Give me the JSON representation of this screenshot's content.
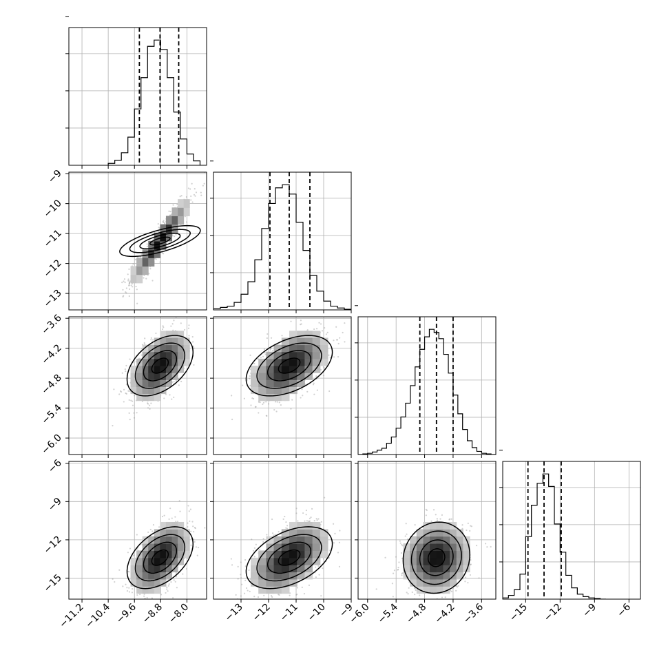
{
  "chart_data": {
    "type": "corner",
    "title": "",
    "grid": true,
    "panels_per_side": 4,
    "parameters": [
      {
        "xlim": [
          -11.6,
          -7.4
        ],
        "xticks": [
          -11.2,
          -10.4,
          -9.6,
          -8.8,
          -8.0
        ],
        "xtick_labels": [
          "−11.2",
          "−10.4",
          "−9.6",
          "−8.8",
          "−8.0"
        ],
        "quantiles": [
          -9.45,
          -8.82,
          -8.25
        ],
        "hist_edges": [
          -10.4,
          -10.2,
          -10.0,
          -9.8,
          -9.6,
          -9.4,
          -9.2,
          -9.0,
          -8.8,
          -8.6,
          -8.4,
          -8.2,
          -8.0,
          -7.8,
          -7.6
        ],
        "hist_counts": [
          3,
          8,
          20,
          45,
          90,
          140,
          190,
          200,
          185,
          140,
          85,
          42,
          18,
          7
        ]
      },
      {
        "xlim": [
          -14.0,
          -9.0
        ],
        "xticks": [
          -13,
          -12,
          -11,
          -10,
          -9
        ],
        "xtick_labels": [
          "−13",
          "−12",
          "−11",
          "−10",
          "−9"
        ],
        "yticks": [
          -9,
          -10,
          -11,
          -12,
          -13
        ],
        "ytick_labels": [
          "−9",
          "−10",
          "−11",
          "−12",
          "−13"
        ],
        "quantiles": [
          -11.95,
          -11.25,
          -10.5
        ],
        "hist_edges": [
          -14.0,
          -13.75,
          -13.5,
          -13.25,
          -13.0,
          -12.75,
          -12.5,
          -12.25,
          -12.0,
          -11.75,
          -11.5,
          -11.25,
          -11.0,
          -10.75,
          -10.5,
          -10.25,
          -10.0,
          -9.75,
          -9.5,
          -9.25,
          -9.0
        ],
        "hist_counts": [
          2,
          4,
          6,
          12,
          25,
          45,
          80,
          130,
          170,
          195,
          200,
          185,
          140,
          95,
          55,
          30,
          14,
          6,
          3,
          1
        ]
      },
      {
        "xlim": [
          -6.2,
          -3.3
        ],
        "xticks": [
          -6.0,
          -5.4,
          -4.8,
          -4.2,
          -3.6
        ],
        "xtick_labels": [
          "−6.0",
          "−5.4",
          "−4.8",
          "−4.2",
          "−3.6"
        ],
        "yticks": [
          -3.6,
          -4.2,
          -4.8,
          -5.4,
          -6.0
        ],
        "ytick_labels": [
          "−3.6",
          "−4.2",
          "−4.8",
          "−5.4",
          "−6.0"
        ],
        "quantiles": [
          -4.9,
          -4.55,
          -4.2
        ],
        "hist_edges": [
          -6.2,
          -6.1,
          -6.0,
          -5.9,
          -5.8,
          -5.7,
          -5.6,
          -5.5,
          -5.4,
          -5.3,
          -5.2,
          -5.1,
          -5.0,
          -4.9,
          -4.8,
          -4.7,
          -4.6,
          -4.5,
          -4.4,
          -4.3,
          -4.2,
          -4.1,
          -4.0,
          -3.9,
          -3.8,
          -3.7,
          -3.6,
          -3.5,
          -3.4,
          -3.3
        ],
        "hist_counts": [
          0,
          1,
          2,
          4,
          7,
          10,
          18,
          28,
          42,
          60,
          82,
          110,
          140,
          168,
          188,
          200,
          195,
          185,
          160,
          130,
          95,
          65,
          40,
          22,
          11,
          5,
          2,
          1,
          0
        ]
      },
      {
        "xlim": [
          -17.0,
          -5.0
        ],
        "xticks": [
          -15,
          -12,
          -9,
          -6
        ],
        "xtick_labels": [
          "−15",
          "−12",
          "−9",
          "−6"
        ],
        "yticks": [
          -6,
          -9,
          -12,
          -15
        ],
        "ytick_labels": [
          "−6",
          "−9",
          "−12",
          "−15"
        ],
        "quantiles": [
          -14.8,
          -13.4,
          -11.9
        ],
        "hist_edges": [
          -17.0,
          -16.5,
          -16.0,
          -15.5,
          -15.0,
          -14.5,
          -14.0,
          -13.5,
          -13.0,
          -12.5,
          -12.0,
          -11.5,
          -11.0,
          -10.5,
          -10.0,
          -9.5,
          -9.0,
          -8.5,
          -8.0
        ],
        "hist_counts": [
          2,
          6,
          15,
          40,
          100,
          150,
          185,
          200,
          180,
          120,
          75,
          38,
          18,
          8,
          4,
          2,
          1,
          0
        ]
      }
    ],
    "pairs": [
      {
        "row": 1,
        "col": 0,
        "mean": [
          -8.82,
          -11.25
        ],
        "sd": [
          0.45,
          0.7
        ],
        "corr": 0.93
      },
      {
        "row": 2,
        "col": 0,
        "mean": [
          -8.82,
          -4.55
        ],
        "sd": [
          0.45,
          0.35
        ],
        "corr": 0.5
      },
      {
        "row": 2,
        "col": 1,
        "mean": [
          -11.25,
          -4.55
        ],
        "sd": [
          0.7,
          0.35
        ],
        "corr": 0.5
      },
      {
        "row": 3,
        "col": 0,
        "mean": [
          -8.82,
          -13.4
        ],
        "sd": [
          0.45,
          1.4
        ],
        "corr": 0.5
      },
      {
        "row": 3,
        "col": 1,
        "mean": [
          -11.25,
          -13.4
        ],
        "sd": [
          0.7,
          1.4
        ],
        "corr": 0.5
      },
      {
        "row": 3,
        "col": 2,
        "mean": [
          -4.55,
          -13.4
        ],
        "sd": [
          0.35,
          1.4
        ],
        "corr": 0.08
      }
    ],
    "contour_levels_sigma": [
      0.5,
      1.0,
      1.5,
      2.0
    ],
    "colors": {
      "line": "#000000",
      "grid": "#b0b0b0",
      "points": "#9a9a9a",
      "density_dark": "#000000",
      "density_light": "#ffffff"
    }
  }
}
